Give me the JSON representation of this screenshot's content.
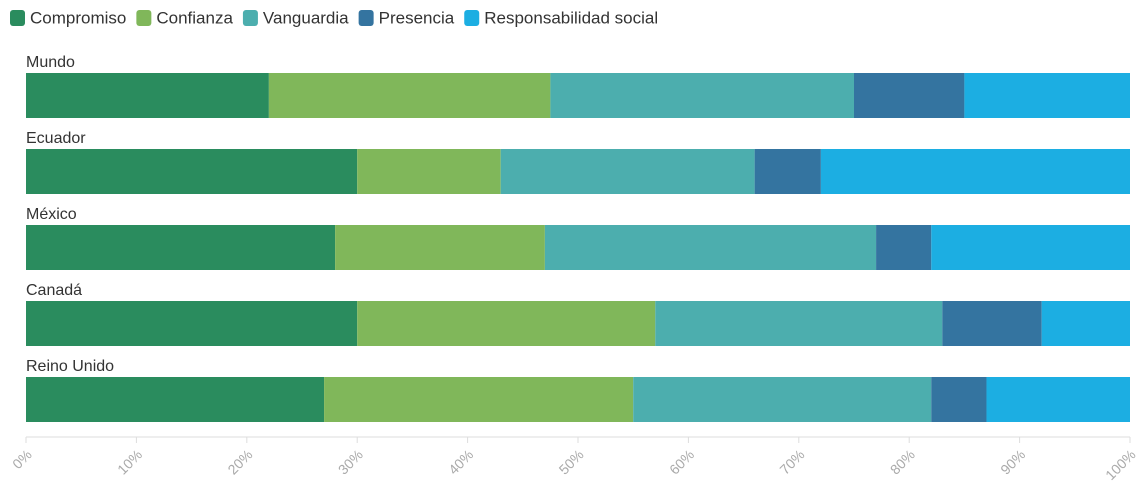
{
  "chart_data": {
    "type": "stacked-bar-horizontal",
    "categories": [
      "Mundo",
      "Ecuador",
      "México",
      "Canadá",
      "Reino Unido"
    ],
    "series": [
      {
        "name": "Compromiso",
        "color": "#2a8c5e",
        "values": [
          22,
          30,
          28,
          30,
          27
        ]
      },
      {
        "name": "Confianza",
        "color": "#80b75a",
        "values": [
          25.5,
          13,
          19,
          27,
          28
        ]
      },
      {
        "name": "Vanguardia",
        "color": "#4caeae",
        "values": [
          27.5,
          23,
          30,
          26,
          27
        ]
      },
      {
        "name": "Presencia",
        "color": "#3474a0",
        "values": [
          10,
          6,
          5,
          9,
          5
        ]
      },
      {
        "name": "Responsabilidad social",
        "color": "#1caee2",
        "values": [
          15,
          28,
          18,
          8,
          13
        ]
      }
    ],
    "xlim": [
      0,
      100
    ],
    "xticks": [
      {
        "value": 0,
        "label": "0%"
      },
      {
        "value": 10,
        "label": "10%"
      },
      {
        "value": 20,
        "label": "20%"
      },
      {
        "value": 30,
        "label": "30%"
      },
      {
        "value": 40,
        "label": "40%"
      },
      {
        "value": 50,
        "label": "50%"
      },
      {
        "value": 60,
        "label": "60%"
      },
      {
        "value": 70,
        "label": "70%"
      },
      {
        "value": 80,
        "label": "80%"
      },
      {
        "value": 90,
        "label": "90%"
      },
      {
        "value": 100,
        "label": "100%"
      }
    ],
    "legend": "top-left"
  }
}
